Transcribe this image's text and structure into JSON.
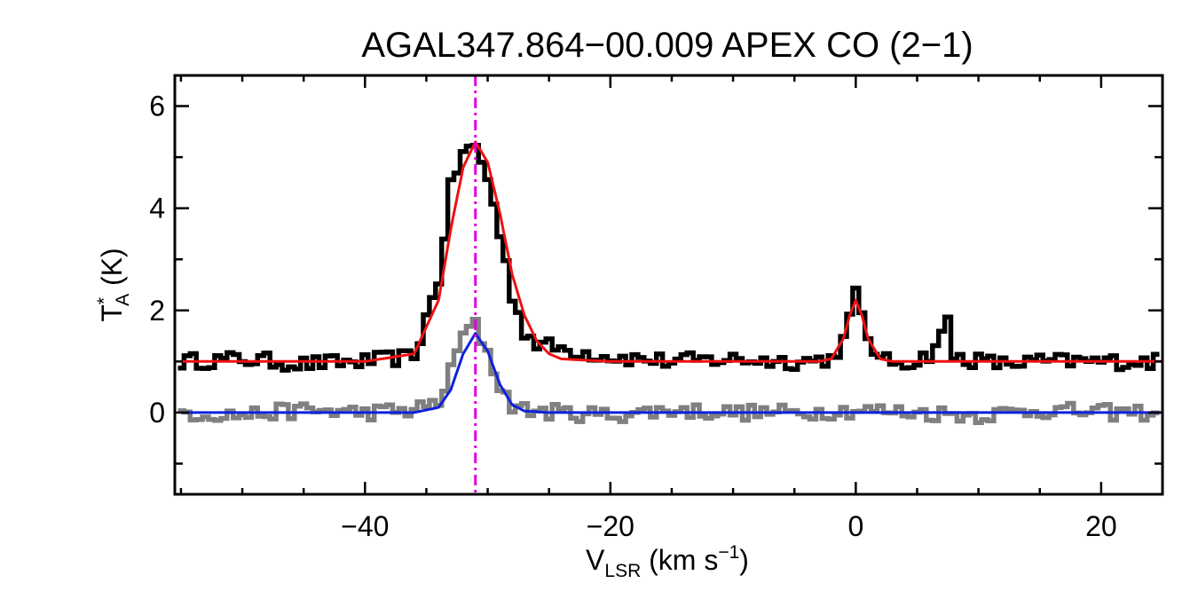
{
  "chart_data": {
    "type": "line",
    "title": "AGAL347.864−00.009  APEX CO (2−1)",
    "xlabel": {
      "main": "V",
      "sub": "LSR",
      "rest": " (km s",
      "sup": "−1",
      "end": ")"
    },
    "ylabel": {
      "main": "T",
      "sup": "*",
      "sub": "A",
      "rest": " (K)"
    },
    "xlim": [
      -55.5,
      25
    ],
    "ylim": [
      -1.6,
      6.6
    ],
    "x_ticks": [
      -40,
      -20,
      0,
      20
    ],
    "x_tick_labels": [
      "−40",
      "−20",
      "0",
      "20"
    ],
    "y_ticks": [
      0,
      2,
      4,
      6
    ],
    "y_tick_labels": [
      "0",
      "2",
      "4",
      "6"
    ],
    "x_minor_step": 5,
    "y_minor_step": 1,
    "marker_line": {
      "x": -31,
      "color": "#e000e0",
      "style": "dash-dot"
    },
    "series": [
      {
        "role": "observed spectrum (offset +1 K)",
        "color": "#000000",
        "style": "histogram",
        "x": [
          -55,
          -50,
          -45,
          -40,
          -36,
          -34,
          -33,
          -32,
          -31,
          -30,
          -29,
          -28,
          -27,
          -26,
          -24,
          -20,
          -15,
          -10,
          -5,
          -2,
          -1,
          0,
          1,
          2,
          5,
          6,
          7,
          7.5,
          8,
          9,
          12,
          15,
          20,
          25
        ],
        "y": [
          1.0,
          1.05,
          0.95,
          1.0,
          1.1,
          2.6,
          4.4,
          5.1,
          5.2,
          4.6,
          3.5,
          2.3,
          1.6,
          1.35,
          1.25,
          1.1,
          1.0,
          1.05,
          1.0,
          1.05,
          1.4,
          2.3,
          1.5,
          1.0,
          1.0,
          1.15,
          1.5,
          1.8,
          1.1,
          1.05,
          0.95,
          1.0,
          1.0,
          1.0
        ]
      },
      {
        "role": "Gaussian fit (offset +1 K)",
        "color": "#ee1111",
        "style": "line",
        "x": [
          -55,
          -40,
          -36,
          -34,
          -33,
          -32,
          -31,
          -30,
          -29,
          -28,
          -27,
          -26,
          -25,
          -24,
          -20,
          -10,
          -3,
          -2,
          -1,
          -0.5,
          0,
          0.5,
          1,
          2,
          3,
          10,
          25
        ],
        "y": [
          1.0,
          1.0,
          1.15,
          2.2,
          3.6,
          4.8,
          5.3,
          4.9,
          3.9,
          2.7,
          1.9,
          1.4,
          1.15,
          1.05,
          1.0,
          1.0,
          1.0,
          1.05,
          1.45,
          1.9,
          2.2,
          1.9,
          1.45,
          1.05,
          1.0,
          1.0,
          1.0
        ]
      },
      {
        "role": "observed spectrum",
        "color": "#808080",
        "style": "histogram",
        "x": [
          -55,
          -50,
          -45,
          -40,
          -36,
          -34,
          -33,
          -32,
          -31,
          -30,
          -29,
          -28,
          -27,
          -24,
          -20,
          -15,
          -10,
          -5,
          0,
          5,
          10,
          15,
          20,
          25
        ],
        "y": [
          0.0,
          -0.05,
          0.05,
          0.0,
          0.05,
          0.2,
          0.8,
          1.55,
          1.7,
          1.2,
          0.5,
          0.15,
          0.05,
          0.0,
          -0.05,
          0.05,
          0.0,
          0.0,
          0.05,
          0.0,
          -0.05,
          0.05,
          0.0,
          0.0
        ]
      },
      {
        "role": "Gaussian fit",
        "color": "#1020dd",
        "style": "line",
        "x": [
          -55,
          -36,
          -34,
          -33,
          -32,
          -31,
          -30,
          -29,
          -28,
          -27,
          -25,
          25
        ],
        "y": [
          0.0,
          0.0,
          0.1,
          0.45,
          1.15,
          1.55,
          1.2,
          0.55,
          0.15,
          0.03,
          0.0,
          0.0
        ]
      }
    ]
  }
}
